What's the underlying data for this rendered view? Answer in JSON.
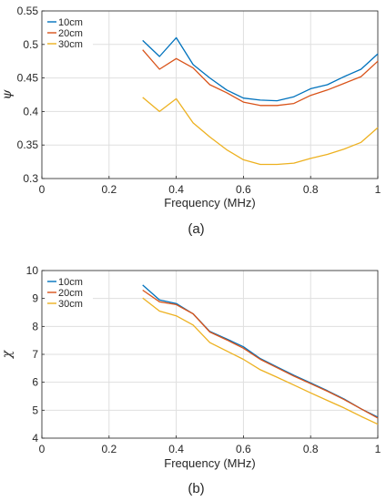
{
  "chart_data": [
    {
      "type": "line",
      "panel_label": "(a)",
      "xlabel": "Frequency (MHz)",
      "ylabel": "ψ",
      "xlim": [
        0,
        1
      ],
      "ylim": [
        0.3,
        0.55
      ],
      "xticks": [
        "0",
        "0.2",
        "0.4",
        "0.6",
        "0.8",
        "1"
      ],
      "yticks": [
        "0.3",
        "0.35",
        "0.4",
        "0.45",
        "0.5",
        "0.55"
      ],
      "grid": true,
      "legend": "top-left",
      "x": [
        0.3,
        0.35,
        0.4,
        0.45,
        0.5,
        0.55,
        0.6,
        0.65,
        0.7,
        0.75,
        0.8,
        0.85,
        0.9,
        0.95,
        1.0
      ],
      "series": [
        {
          "name": "10cm",
          "color": "#0072BD",
          "values": [
            0.506,
            0.482,
            0.51,
            0.47,
            0.45,
            0.432,
            0.42,
            0.417,
            0.416,
            0.422,
            0.434,
            0.44,
            0.452,
            0.463,
            0.486
          ]
        },
        {
          "name": "20cm",
          "color": "#D95319",
          "values": [
            0.492,
            0.463,
            0.479,
            0.465,
            0.44,
            0.428,
            0.414,
            0.409,
            0.409,
            0.412,
            0.424,
            0.432,
            0.442,
            0.452,
            0.475
          ]
        },
        {
          "name": "30cm",
          "color": "#EDB120",
          "values": [
            0.421,
            0.4,
            0.419,
            0.383,
            0.362,
            0.343,
            0.328,
            0.321,
            0.321,
            0.323,
            0.33,
            0.336,
            0.344,
            0.354,
            0.376
          ]
        }
      ]
    },
    {
      "type": "line",
      "panel_label": "(b)",
      "xlabel": "Frequency (MHz)",
      "ylabel": "χ",
      "xlim": [
        0,
        1
      ],
      "ylim": [
        4,
        10
      ],
      "xticks": [
        "0",
        "0.2",
        "0.4",
        "0.6",
        "0.8",
        "1"
      ],
      "yticks": [
        "4",
        "5",
        "6",
        "7",
        "8",
        "9",
        "10"
      ],
      "grid": true,
      "legend": "top-left",
      "x": [
        0.3,
        0.35,
        0.4,
        0.45,
        0.5,
        0.55,
        0.6,
        0.65,
        0.7,
        0.75,
        0.8,
        0.85,
        0.9,
        0.95,
        1.0
      ],
      "series": [
        {
          "name": "10cm",
          "color": "#0072BD",
          "values": [
            9.48,
            8.95,
            8.82,
            8.45,
            7.82,
            7.55,
            7.27,
            6.85,
            6.55,
            6.25,
            5.98,
            5.7,
            5.4,
            5.05,
            4.75
          ]
        },
        {
          "name": "20cm",
          "color": "#D95319",
          "values": [
            9.3,
            8.88,
            8.78,
            8.45,
            7.8,
            7.52,
            7.22,
            6.82,
            6.52,
            6.22,
            5.95,
            5.68,
            5.38,
            5.05,
            4.72
          ]
        },
        {
          "name": "30cm",
          "color": "#EDB120",
          "values": [
            9.02,
            8.55,
            8.38,
            8.05,
            7.42,
            7.12,
            6.82,
            6.45,
            6.18,
            5.9,
            5.62,
            5.35,
            5.08,
            4.78,
            4.5
          ]
        }
      ]
    }
  ]
}
